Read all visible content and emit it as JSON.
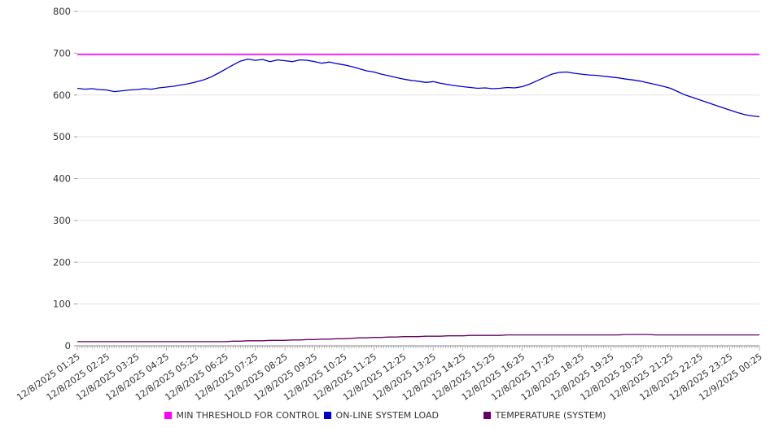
{
  "chart_data": {
    "type": "line",
    "title": "",
    "xlabel": "",
    "ylabel": "",
    "ylim": [
      0,
      800
    ],
    "y_ticks": [
      0,
      100,
      200,
      300,
      400,
      500,
      600,
      700,
      800
    ],
    "grid": "horizontal",
    "legend_position": "bottom",
    "x_labels": [
      "12/8/2025 01:25",
      "12/8/2025 02:25",
      "12/8/2025 03:25",
      "12/8/2025 04:25",
      "12/8/2025 05:25",
      "12/8/2025 06:25",
      "12/8/2025 07:25",
      "12/8/2025 08:25",
      "12/8/2025 09:25",
      "12/8/2025 10:25",
      "12/8/2025 11:25",
      "12/8/2025 12:25",
      "12/8/2025 13:25",
      "12/8/2025 14:25",
      "12/8/2025 15:25",
      "12/8/2025 16:25",
      "12/8/2025 17:25",
      "12/8/2025 18:25",
      "12/8/2025 19:25",
      "12/8/2025 20:25",
      "12/8/2025 21:25",
      "12/8/2025 22:25",
      "12/8/2025 23:25",
      "12/9/2025 00:25"
    ],
    "samples_per_hour": 4,
    "series": [
      {
        "name": "MIN THRESHOLD FOR CONTROL",
        "color": "#ff00ff",
        "constant": 697
      },
      {
        "name": "ON-LINE SYSTEM LOAD",
        "color": "#0000cc",
        "values": [
          616,
          614,
          615,
          613,
          612,
          608,
          610,
          612,
          613,
          615,
          614,
          617,
          619,
          621,
          624,
          627,
          631,
          636,
          643,
          652,
          662,
          672,
          681,
          686,
          683,
          685,
          680,
          684,
          682,
          680,
          684,
          683,
          680,
          676,
          679,
          675,
          672,
          668,
          663,
          658,
          655,
          650,
          646,
          642,
          638,
          635,
          633,
          630,
          632,
          628,
          625,
          622,
          620,
          618,
          616,
          617,
          615,
          616,
          618,
          617,
          620,
          626,
          634,
          642,
          650,
          654,
          655,
          652,
          650,
          648,
          647,
          645,
          643,
          641,
          638,
          636,
          633,
          629,
          625,
          621,
          616,
          608,
          600,
          594,
          588,
          582,
          576,
          570,
          564,
          558,
          553,
          550,
          548
        ]
      },
      {
        "name": "TEMPERATURE (SYSTEM)",
        "color": "#660066",
        "values": [
          10,
          10,
          10,
          10,
          10,
          10,
          10,
          10,
          10,
          10,
          10,
          10,
          10,
          10,
          10,
          10,
          10,
          10,
          10,
          10,
          10,
          11,
          11,
          12,
          12,
          12,
          13,
          13,
          13,
          14,
          14,
          15,
          15,
          16,
          16,
          17,
          17,
          18,
          19,
          19,
          20,
          20,
          21,
          21,
          22,
          22,
          22,
          23,
          23,
          23,
          24,
          24,
          24,
          25,
          25,
          25,
          25,
          25,
          26,
          26,
          26,
          26,
          26,
          26,
          26,
          26,
          26,
          26,
          26,
          26,
          26,
          26,
          26,
          26,
          27,
          27,
          27,
          27,
          26,
          26,
          26,
          26,
          26,
          26,
          26,
          26,
          26,
          26,
          26,
          26,
          26,
          26,
          26
        ]
      }
    ]
  }
}
